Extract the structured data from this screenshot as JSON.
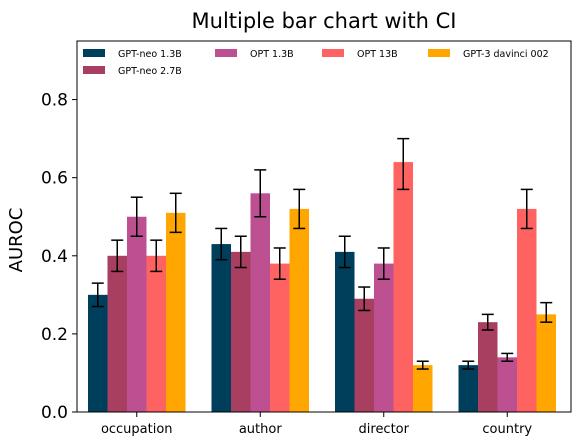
{
  "chart_data": {
    "type": "bar",
    "title": "Multiple bar chart with CI",
    "xlabel": "",
    "ylabel": "AUROC",
    "ylim": [
      0,
      0.95
    ],
    "yticks": [
      "0.0",
      "0.2",
      "0.4",
      "0.6",
      "0.8"
    ],
    "grid": false,
    "legend_position": "top",
    "categories": [
      "occupation",
      "author",
      "director",
      "country"
    ],
    "series": [
      {
        "name": "GPT-neo 1.3B",
        "color": "#003f5c",
        "values": [
          0.3,
          0.43,
          0.41,
          0.12
        ],
        "err_low": [
          0.27,
          0.39,
          0.37,
          0.11
        ],
        "err_high": [
          0.33,
          0.47,
          0.45,
          0.13
        ]
      },
      {
        "name": "GPT-neo 2.7B",
        "color": "#a83e60",
        "values": [
          0.4,
          0.41,
          0.29,
          0.23
        ],
        "err_low": [
          0.36,
          0.37,
          0.26,
          0.21
        ],
        "err_high": [
          0.44,
          0.45,
          0.32,
          0.25
        ]
      },
      {
        "name": "OPT 1.3B",
        "color": "#bc5090",
        "values": [
          0.5,
          0.56,
          0.38,
          0.14
        ],
        "err_low": [
          0.45,
          0.5,
          0.34,
          0.13
        ],
        "err_high": [
          0.55,
          0.62,
          0.42,
          0.15
        ]
      },
      {
        "name": "OPT 13B",
        "color": "#ff6361",
        "values": [
          0.4,
          0.38,
          0.64,
          0.52
        ],
        "err_low": [
          0.36,
          0.34,
          0.57,
          0.47
        ],
        "err_high": [
          0.44,
          0.42,
          0.7,
          0.57
        ]
      },
      {
        "name": "GPT-3 davinci 002",
        "color": "#ffa600",
        "values": [
          0.51,
          0.52,
          0.12,
          0.25
        ],
        "err_low": [
          0.46,
          0.47,
          0.11,
          0.23
        ],
        "err_high": [
          0.56,
          0.57,
          0.13,
          0.28
        ]
      }
    ]
  }
}
